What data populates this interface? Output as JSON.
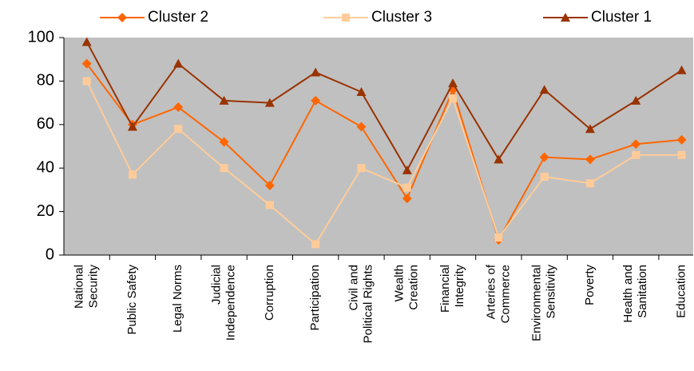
{
  "chart_data": {
    "type": "line",
    "categories": [
      [
        "National",
        "Security"
      ],
      [
        "Public Safety"
      ],
      [
        "Legal Norms"
      ],
      [
        "Judicial",
        "Independence"
      ],
      [
        "Corruption"
      ],
      [
        "Participation"
      ],
      [
        "Civil and",
        "Political Rights"
      ],
      [
        "Wealth",
        "Creation"
      ],
      [
        "Financial",
        "Integrity"
      ],
      [
        "Arteries of",
        "Commerce"
      ],
      [
        "Environmental",
        "Sensitivity"
      ],
      [
        "Poverty"
      ],
      [
        "Health and",
        "Sanitation"
      ],
      [
        "Education"
      ]
    ],
    "series": [
      {
        "name": "Cluster 2",
        "color": "#ff6600",
        "marker": "diamond",
        "values": [
          88,
          60,
          68,
          52,
          32,
          71,
          59,
          26,
          76,
          7,
          45,
          44,
          51,
          53
        ]
      },
      {
        "name": "Cluster 3",
        "color": "#ffcc99",
        "marker": "square",
        "values": [
          80,
          37,
          58,
          40,
          23,
          5,
          40,
          31,
          72,
          8,
          36,
          33,
          46,
          46
        ]
      },
      {
        "name": "Cluster 1",
        "color": "#993300",
        "marker": "triangle",
        "values": [
          98,
          59,
          88,
          71,
          70,
          84,
          75,
          39,
          79,
          44,
          76,
          58,
          71,
          85
        ]
      }
    ],
    "ylim": [
      0,
      100
    ],
    "yticks": [
      0,
      20,
      40,
      60,
      80,
      100
    ]
  }
}
